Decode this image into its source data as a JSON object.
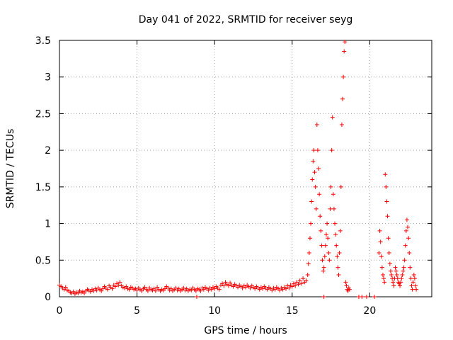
{
  "chart_data": {
    "type": "scatter",
    "title": "Day 041 of 2022, SRMTID for receiver seyg",
    "xlabel": "GPS time / hours",
    "ylabel": "SRMTID / TECUs",
    "xlim": [
      0,
      24
    ],
    "ylim": [
      0,
      3.5
    ],
    "x_ticks": [
      0,
      5,
      10,
      15,
      20
    ],
    "x_tick_labels": [
      "0",
      "5",
      "10",
      "15",
      "20"
    ],
    "y_ticks": [
      0,
      0.5,
      1,
      1.5,
      2,
      2.5,
      3,
      3.5
    ],
    "y_tick_labels": [
      "0",
      "0.5",
      "1",
      "1.5",
      "2",
      "2.5",
      "3",
      "3.5"
    ],
    "grid": true,
    "series": [
      {
        "name": "SRMTID",
        "marker": "+",
        "color": "#ff0000",
        "points": [
          [
            0.0,
            0.16
          ],
          [
            0.1,
            0.14
          ],
          [
            0.2,
            0.12
          ],
          [
            0.3,
            0.1
          ],
          [
            0.4,
            0.13
          ],
          [
            0.5,
            0.09
          ],
          [
            0.6,
            0.08
          ],
          [
            0.7,
            0.06
          ],
          [
            0.8,
            0.05
          ],
          [
            0.9,
            0.07
          ],
          [
            1.0,
            0.04
          ],
          [
            1.1,
            0.06
          ],
          [
            1.2,
            0.05
          ],
          [
            1.3,
            0.08
          ],
          [
            1.4,
            0.06
          ],
          [
            1.5,
            0.07
          ],
          [
            1.6,
            0.05
          ],
          [
            1.7,
            0.08
          ],
          [
            1.8,
            0.1
          ],
          [
            1.9,
            0.09
          ],
          [
            2.0,
            0.07
          ],
          [
            2.1,
            0.1
          ],
          [
            2.2,
            0.08
          ],
          [
            2.3,
            0.11
          ],
          [
            2.4,
            0.09
          ],
          [
            2.5,
            0.12
          ],
          [
            2.6,
            0.1
          ],
          [
            2.7,
            0.08
          ],
          [
            2.8,
            0.11
          ],
          [
            2.9,
            0.14
          ],
          [
            3.0,
            0.12
          ],
          [
            3.1,
            0.1
          ],
          [
            3.2,
            0.15
          ],
          [
            3.3,
            0.13
          ],
          [
            3.4,
            0.11
          ],
          [
            3.5,
            0.16
          ],
          [
            3.6,
            0.14
          ],
          [
            3.7,
            0.18
          ],
          [
            3.8,
            0.16
          ],
          [
            3.9,
            0.2
          ],
          [
            4.0,
            0.15
          ],
          [
            4.1,
            0.13
          ],
          [
            4.2,
            0.12
          ],
          [
            4.3,
            0.14
          ],
          [
            4.4,
            0.11
          ],
          [
            4.5,
            0.1
          ],
          [
            4.6,
            0.13
          ],
          [
            4.7,
            0.12
          ],
          [
            4.8,
            0.1
          ],
          [
            4.9,
            0.11
          ],
          [
            5.0,
            0.09
          ],
          [
            5.1,
            0.12
          ],
          [
            5.2,
            0.1
          ],
          [
            5.3,
            0.08
          ],
          [
            5.4,
            0.11
          ],
          [
            5.5,
            0.13
          ],
          [
            5.6,
            0.1
          ],
          [
            5.7,
            0.08
          ],
          [
            5.8,
            0.12
          ],
          [
            5.9,
            0.1
          ],
          [
            6.0,
            0.09
          ],
          [
            6.1,
            0.11
          ],
          [
            6.2,
            0.08
          ],
          [
            6.3,
            0.13
          ],
          [
            6.4,
            0.1
          ],
          [
            6.5,
            0.08
          ],
          [
            6.6,
            0.1
          ],
          [
            6.7,
            0.09
          ],
          [
            6.8,
            0.11
          ],
          [
            6.9,
            0.14
          ],
          [
            7.0,
            0.12
          ],
          [
            7.1,
            0.09
          ],
          [
            7.2,
            0.11
          ],
          [
            7.3,
            0.08
          ],
          [
            7.4,
            0.1
          ],
          [
            7.5,
            0.12
          ],
          [
            7.6,
            0.09
          ],
          [
            7.7,
            0.11
          ],
          [
            7.8,
            0.08
          ],
          [
            7.9,
            0.1
          ],
          [
            8.0,
            0.12
          ],
          [
            8.1,
            0.09
          ],
          [
            8.2,
            0.11
          ],
          [
            8.3,
            0.08
          ],
          [
            8.4,
            0.1
          ],
          [
            8.5,
            0.09
          ],
          [
            8.6,
            0.12
          ],
          [
            8.7,
            0.1
          ],
          [
            8.8,
            0.08
          ],
          [
            8.9,
            0.11
          ],
          [
            9.0,
            0.1
          ],
          [
            9.1,
            0.08
          ],
          [
            9.2,
            0.12
          ],
          [
            9.3,
            0.1
          ],
          [
            9.4,
            0.13
          ],
          [
            9.5,
            0.11
          ],
          [
            9.6,
            0.09
          ],
          [
            9.7,
            0.12
          ],
          [
            9.8,
            0.1
          ],
          [
            9.9,
            0.13
          ],
          [
            10.0,
            0.11
          ],
          [
            10.1,
            0.14
          ],
          [
            10.2,
            0.12
          ],
          [
            10.3,
            0.1
          ],
          [
            10.4,
            0.16
          ],
          [
            10.5,
            0.18
          ],
          [
            10.6,
            0.15
          ],
          [
            10.7,
            0.2
          ],
          [
            10.8,
            0.17
          ],
          [
            10.9,
            0.15
          ],
          [
            11.0,
            0.19
          ],
          [
            11.1,
            0.16
          ],
          [
            11.2,
            0.14
          ],
          [
            11.3,
            0.17
          ],
          [
            11.4,
            0.15
          ],
          [
            11.5,
            0.13
          ],
          [
            11.6,
            0.16
          ],
          [
            11.7,
            0.14
          ],
          [
            11.8,
            0.12
          ],
          [
            11.9,
            0.15
          ],
          [
            12.0,
            0.13
          ],
          [
            12.1,
            0.16
          ],
          [
            12.2,
            0.14
          ],
          [
            12.3,
            0.12
          ],
          [
            12.4,
            0.15
          ],
          [
            12.5,
            0.13
          ],
          [
            12.6,
            0.11
          ],
          [
            12.7,
            0.14
          ],
          [
            12.8,
            0.12
          ],
          [
            12.9,
            0.1
          ],
          [
            13.0,
            0.13
          ],
          [
            13.1,
            0.11
          ],
          [
            13.2,
            0.14
          ],
          [
            13.3,
            0.12
          ],
          [
            13.4,
            0.1
          ],
          [
            13.5,
            0.13
          ],
          [
            13.6,
            0.11
          ],
          [
            13.7,
            0.09
          ],
          [
            13.8,
            0.12
          ],
          [
            13.9,
            0.1
          ],
          [
            14.0,
            0.13
          ],
          [
            14.1,
            0.11
          ],
          [
            14.2,
            0.09
          ],
          [
            14.3,
            0.12
          ],
          [
            14.4,
            0.1
          ],
          [
            14.5,
            0.13
          ],
          [
            14.6,
            0.11
          ],
          [
            14.7,
            0.15
          ],
          [
            14.8,
            0.12
          ],
          [
            14.9,
            0.16
          ],
          [
            15.0,
            0.14
          ],
          [
            15.1,
            0.18
          ],
          [
            15.2,
            0.15
          ],
          [
            15.3,
            0.2
          ],
          [
            15.4,
            0.17
          ],
          [
            15.5,
            0.22
          ],
          [
            15.6,
            0.18
          ],
          [
            15.7,
            0.25
          ],
          [
            15.8,
            0.2
          ],
          [
            15.9,
            0.22
          ],
          [
            16.0,
            0.3
          ],
          [
            16.05,
            0.45
          ],
          [
            16.1,
            0.6
          ],
          [
            16.15,
            0.8
          ],
          [
            16.2,
            1.0
          ],
          [
            16.25,
            1.3
          ],
          [
            16.3,
            1.6
          ],
          [
            16.35,
            1.85
          ],
          [
            16.4,
            2.0
          ],
          [
            16.45,
            1.7
          ],
          [
            16.5,
            1.5
          ],
          [
            16.55,
            1.2
          ],
          [
            16.6,
            2.35
          ],
          [
            16.65,
            2.0
          ],
          [
            16.7,
            1.75
          ],
          [
            16.75,
            1.4
          ],
          [
            16.8,
            1.1
          ],
          [
            16.85,
            0.9
          ],
          [
            16.9,
            0.7
          ],
          [
            16.95,
            0.5
          ],
          [
            17.0,
            0.35
          ],
          [
            17.05,
            0.4
          ],
          [
            17.1,
            0.55
          ],
          [
            17.15,
            0.7
          ],
          [
            17.2,
            0.85
          ],
          [
            17.25,
            1.0
          ],
          [
            17.3,
            0.8
          ],
          [
            17.35,
            0.6
          ],
          [
            17.4,
            0.5
          ],
          [
            17.45,
            1.2
          ],
          [
            17.5,
            1.5
          ],
          [
            17.55,
            2.0
          ],
          [
            17.6,
            2.45
          ],
          [
            17.65,
            1.4
          ],
          [
            17.7,
            1.2
          ],
          [
            17.75,
            1.0
          ],
          [
            17.8,
            0.85
          ],
          [
            17.85,
            0.7
          ],
          [
            17.9,
            0.55
          ],
          [
            17.95,
            0.4
          ],
          [
            18.0,
            0.3
          ],
          [
            18.05,
            0.6
          ],
          [
            18.1,
            0.9
          ],
          [
            18.15,
            1.5
          ],
          [
            18.2,
            2.35
          ],
          [
            18.25,
            2.7
          ],
          [
            18.3,
            3.0
          ],
          [
            18.35,
            3.35
          ],
          [
            18.4,
            3.48
          ],
          [
            18.45,
            0.2
          ],
          [
            18.5,
            0.15
          ],
          [
            18.55,
            0.1
          ],
          [
            18.6,
            0.08
          ],
          [
            18.65,
            0.12
          ],
          [
            18.7,
            0.1
          ],
          [
            17.05,
            0.0
          ],
          [
            19.3,
            0.0
          ],
          [
            19.5,
            0.0
          ],
          [
            19.8,
            0.0
          ],
          [
            20.3,
            0.0
          ],
          [
            8.85,
            0.0
          ],
          [
            20.6,
            0.6
          ],
          [
            20.65,
            0.9
          ],
          [
            20.7,
            0.75
          ],
          [
            20.75,
            0.55
          ],
          [
            20.8,
            0.4
          ],
          [
            20.85,
            0.3
          ],
          [
            20.9,
            0.25
          ],
          [
            20.95,
            0.2
          ],
          [
            21.0,
            1.67
          ],
          [
            21.05,
            1.5
          ],
          [
            21.1,
            1.3
          ],
          [
            21.15,
            1.1
          ],
          [
            21.2,
            0.8
          ],
          [
            21.25,
            0.6
          ],
          [
            21.3,
            0.45
          ],
          [
            21.35,
            0.35
          ],
          [
            21.4,
            0.3
          ],
          [
            21.45,
            0.25
          ],
          [
            21.5,
            0.2
          ],
          [
            21.55,
            0.15
          ],
          [
            21.6,
            0.25
          ],
          [
            21.65,
            0.4
          ],
          [
            21.7,
            0.35
          ],
          [
            21.75,
            0.3
          ],
          [
            21.8,
            0.25
          ],
          [
            21.85,
            0.2
          ],
          [
            21.9,
            0.18
          ],
          [
            21.95,
            0.15
          ],
          [
            22.0,
            0.2
          ],
          [
            22.05,
            0.25
          ],
          [
            22.1,
            0.3
          ],
          [
            22.15,
            0.35
          ],
          [
            22.2,
            0.4
          ],
          [
            22.25,
            0.5
          ],
          [
            22.3,
            0.7
          ],
          [
            22.35,
            0.9
          ],
          [
            22.4,
            1.05
          ],
          [
            22.45,
            0.95
          ],
          [
            22.5,
            0.8
          ],
          [
            22.55,
            0.6
          ],
          [
            22.6,
            0.4
          ],
          [
            22.65,
            0.25
          ],
          [
            22.7,
            0.15
          ],
          [
            22.75,
            0.1
          ],
          [
            22.8,
            0.2
          ],
          [
            22.85,
            0.3
          ],
          [
            22.9,
            0.25
          ],
          [
            22.95,
            0.15
          ],
          [
            23.0,
            0.1
          ]
        ]
      }
    ]
  }
}
